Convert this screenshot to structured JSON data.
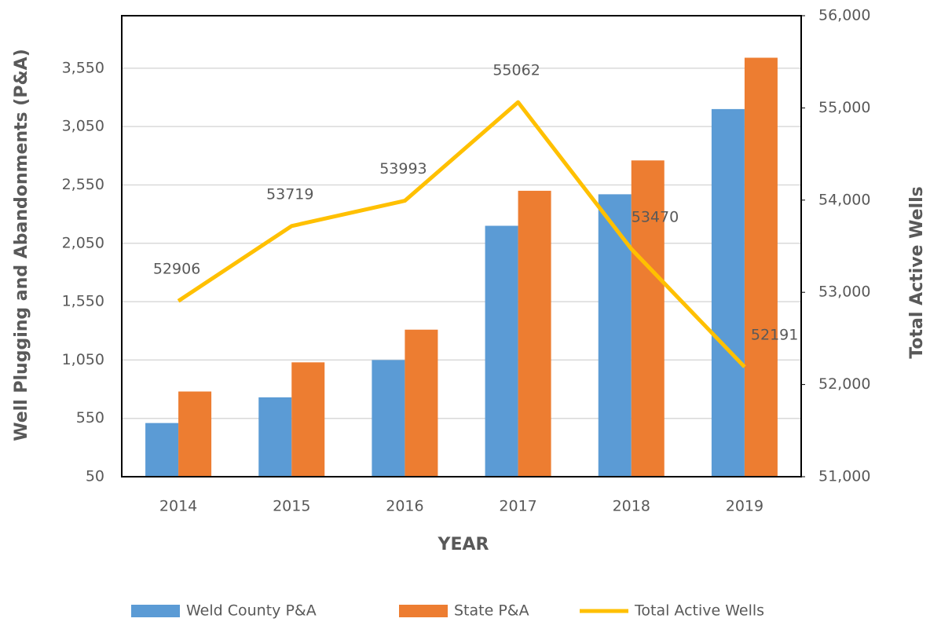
{
  "chart_data": {
    "type": "bar_line",
    "x_label": "YEAR",
    "y_label": "Well Plugging and Abandonments (P&A)",
    "y2_label": "Total Active Wells",
    "categories": [
      "2014",
      "2015",
      "2016",
      "2017",
      "2018",
      "2019"
    ],
    "series": [
      {
        "name": "Weld County P&A",
        "color": "#5b9bd5",
        "type": "bar",
        "values": [
          510,
          730,
          1050,
          2200,
          2470,
          3200
        ]
      },
      {
        "name": "State P&A",
        "color": "#ed7d31",
        "type": "bar",
        "values": [
          780,
          1030,
          1310,
          2500,
          2760,
          3640
        ]
      },
      {
        "name": "Total Active Wells",
        "color": "#ffc000",
        "type": "line",
        "axis": "y2",
        "values": [
          52906,
          53719,
          53993,
          55062,
          53470,
          52191
        ]
      }
    ],
    "ylim": [
      50,
      4000
    ],
    "yticks": [
      50,
      550,
      {
        "value": 1050,
        "label": "1,050"
      },
      {
        "value": 1550,
        "label": "1,550"
      },
      {
        "value": 2050,
        "label": "2,050"
      },
      {
        "value": 2550,
        "label": "2,550"
      },
      {
        "value": 3050,
        "label": "3,050"
      },
      {
        "value": 3550,
        "label": "3,550"
      }
    ],
    "y2lim": [
      51000,
      56000
    ],
    "y2ticks": [
      {
        "value": 51000,
        "label": "51,000"
      },
      {
        "value": 52000,
        "label": "52,000"
      },
      {
        "value": 53000,
        "label": "53,000"
      },
      {
        "value": 54000,
        "label": "54,000"
      },
      {
        "value": 55000,
        "label": "55,000"
      },
      {
        "value": 56000,
        "label": "56,000"
      }
    ],
    "grid": true,
    "legend": "bottom"
  }
}
